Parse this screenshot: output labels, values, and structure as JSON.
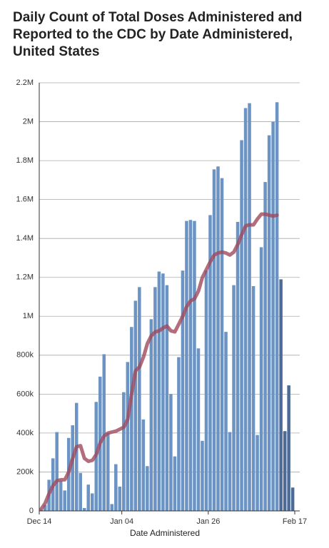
{
  "chart_data": {
    "type": "bar_line",
    "title_lines": [
      "Daily Count of Total Doses Administered and",
      "Reported to the CDC by Date Administered,",
      "United States"
    ],
    "x_label": "Date Administered",
    "categories": [
      "Dec 14",
      "Dec 15",
      "Dec 16",
      "Dec 17",
      "Dec 18",
      "Dec 19",
      "Dec 20",
      "Dec 21",
      "Dec 22",
      "Dec 23",
      "Dec 24",
      "Dec 25",
      "Dec 26",
      "Dec 27",
      "Dec 28",
      "Dec 29",
      "Dec 30",
      "Dec 31",
      "Jan 01",
      "Jan 02",
      "Jan 03",
      "Jan 04",
      "Jan 05",
      "Jan 06",
      "Jan 07",
      "Jan 08",
      "Jan 09",
      "Jan 10",
      "Jan 11",
      "Jan 12",
      "Jan 13",
      "Jan 14",
      "Jan 15",
      "Jan 16",
      "Jan 17",
      "Jan 18",
      "Jan 19",
      "Jan 20",
      "Jan 21",
      "Jan 22",
      "Jan 23",
      "Jan 24",
      "Jan 25",
      "Jan 26",
      "Jan 27",
      "Jan 28",
      "Jan 29",
      "Jan 30",
      "Jan 31",
      "Feb 01",
      "Feb 02",
      "Feb 03",
      "Feb 04",
      "Feb 05",
      "Feb 06",
      "Feb 07",
      "Feb 08",
      "Feb 09",
      "Feb 10",
      "Feb 11",
      "Feb 12",
      "Feb 13",
      "Feb 14",
      "Feb 15",
      "Feb 16"
    ],
    "bars": {
      "values": [
        5000,
        30000,
        160000,
        270000,
        405000,
        155000,
        105000,
        375000,
        440000,
        555000,
        195000,
        15000,
        135000,
        90000,
        560000,
        690000,
        805000,
        400000,
        35000,
        240000,
        125000,
        610000,
        765000,
        945000,
        1080000,
        1150000,
        470000,
        230000,
        985000,
        1150000,
        1230000,
        1220000,
        1160000,
        600000,
        280000,
        790000,
        1235000,
        1490000,
        1495000,
        1490000,
        835000,
        360000,
        1235000,
        1520000,
        1755000,
        1770000,
        1710000,
        920000,
        405000,
        1160000,
        1485000,
        1905000,
        2070000,
        2095000,
        1155000,
        390000,
        1355000,
        1690000,
        1930000,
        2000000,
        2100000,
        1190000,
        410000,
        645000,
        120000
      ],
      "colors": [
        "#6b93c3",
        "#6b93c3",
        "#6b93c3",
        "#6b93c3",
        "#6b93c3",
        "#6b93c3",
        "#6b93c3",
        "#6b93c3",
        "#6b93c3",
        "#6b93c3",
        "#6b93c3",
        "#6b93c3",
        "#6b93c3",
        "#6b93c3",
        "#6b93c3",
        "#6b93c3",
        "#6b93c3",
        "#6b93c3",
        "#6b93c3",
        "#6b93c3",
        "#6b93c3",
        "#6b93c3",
        "#6b93c3",
        "#6b93c3",
        "#6b93c3",
        "#6b93c3",
        "#6b93c3",
        "#6b93c3",
        "#6b93c3",
        "#6b93c3",
        "#6b93c3",
        "#6b93c3",
        "#6b93c3",
        "#6b93c3",
        "#6b93c3",
        "#6b93c3",
        "#6b93c3",
        "#6b93c3",
        "#6b93c3",
        "#6b93c3",
        "#6b93c3",
        "#6b93c3",
        "#6b93c3",
        "#6b93c3",
        "#6b93c3",
        "#6b93c3",
        "#6b93c3",
        "#6b93c3",
        "#6b93c3",
        "#6b93c3",
        "#6b93c3",
        "#6b93c3",
        "#6b93c3",
        "#6b93c3",
        "#6b93c3",
        "#6b93c3",
        "#6b93c3",
        "#6b93c3",
        "#6b93c3",
        "#6b93c3",
        "#6b93c3",
        "#4d6b96",
        "#4d6b96",
        "#4d6b96",
        "#4d6b96"
      ]
    },
    "line": {
      "color": "#a04a5c",
      "values": [
        10000,
        40000,
        90000,
        130000,
        155000,
        160000,
        160000,
        200000,
        270000,
        330000,
        335000,
        270000,
        255000,
        260000,
        290000,
        350000,
        385000,
        400000,
        405000,
        410000,
        420000,
        430000,
        470000,
        600000,
        720000,
        740000,
        790000,
        860000,
        900000,
        920000,
        925000,
        940000,
        950000,
        925000,
        920000,
        960000,
        1000000,
        1050000,
        1080000,
        1090000,
        1130000,
        1200000,
        1240000,
        1280000,
        1315000,
        1325000,
        1330000,
        1325000,
        1315000,
        1330000,
        1370000,
        1420000,
        1465000,
        1470000,
        1470000,
        1500000,
        1525000,
        1525000,
        1520000,
        1515000,
        1520000,
        null,
        null,
        null,
        null
      ]
    },
    "ylim": [
      0,
      2200000
    ],
    "yticks": [
      0,
      {
        "value": 200000,
        "label": "200k"
      },
      {
        "value": 400000,
        "label": "400k"
      },
      {
        "value": 600000,
        "label": "600k"
      },
      {
        "value": 800000,
        "label": "800k"
      },
      {
        "value": 1000000,
        "label": "1M"
      },
      {
        "value": 1200000,
        "label": "1.2M"
      },
      {
        "value": 1400000,
        "label": "1.4M"
      },
      {
        "value": 1600000,
        "label": "1.6M"
      },
      {
        "value": 1800000,
        "label": "1.8M"
      },
      {
        "value": 2000000,
        "label": "2M"
      },
      {
        "value": 2200000,
        "label": "2.2M"
      }
    ],
    "xticks": [
      "Dec 14",
      "Jan 04",
      "Jan 26",
      "Feb 17"
    ],
    "grid": true
  }
}
